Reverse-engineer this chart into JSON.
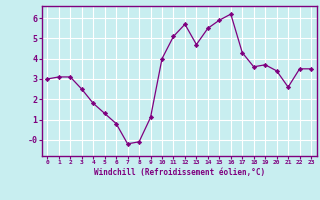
{
  "x": [
    0,
    1,
    2,
    3,
    4,
    5,
    6,
    7,
    8,
    9,
    10,
    11,
    12,
    13,
    14,
    15,
    16,
    17,
    18,
    19,
    20,
    21,
    22,
    23
  ],
  "y": [
    3.0,
    3.1,
    3.1,
    2.5,
    1.8,
    1.3,
    0.8,
    -0.2,
    -0.1,
    1.1,
    4.0,
    5.1,
    5.7,
    4.7,
    5.5,
    5.9,
    6.2,
    4.3,
    3.6,
    3.7,
    3.4,
    2.6,
    3.5,
    3.5
  ],
  "line_color": "#7f007f",
  "marker": "D",
  "marker_size": 2.2,
  "bg_color": "#c8eef0",
  "grid_color": "#ffffff",
  "xlabel": "Windchill (Refroidissement éolien,°C)",
  "xlabel_color": "#7f007f",
  "tick_color": "#7f007f",
  "spine_color": "#7f007f",
  "ylim": [
    -0.8,
    6.6
  ],
  "xlim": [
    -0.5,
    23.5
  ],
  "yticks": [
    0,
    1,
    2,
    3,
    4,
    5,
    6
  ],
  "ytick_labels": [
    "-0",
    "1",
    "2",
    "3",
    "4",
    "5",
    "6"
  ],
  "xtick_labels": [
    "0",
    "1",
    "2",
    "3",
    "4",
    "5",
    "6",
    "7",
    "8",
    "9",
    "10",
    "11",
    "12",
    "13",
    "14",
    "15",
    "16",
    "17",
    "18",
    "19",
    "20",
    "21",
    "22",
    "23"
  ],
  "figsize": [
    3.2,
    2.0
  ],
  "dpi": 100
}
